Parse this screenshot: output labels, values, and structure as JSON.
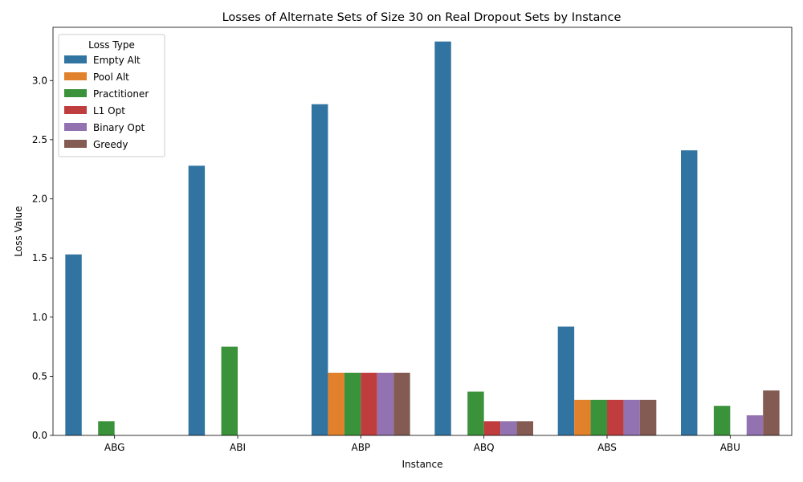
{
  "chart_data": {
    "type": "bar",
    "title": "Losses of Alternate Sets of Size 30 on Real Dropout Sets by Instance",
    "xlabel": "Instance",
    "ylabel": "Loss Value",
    "ylim": [
      0,
      3.45
    ],
    "yticks": [
      "0.0",
      "0.5",
      "1.0",
      "1.5",
      "2.0",
      "2.5",
      "3.0"
    ],
    "grid": false,
    "legend": {
      "title": "Loss Type",
      "placement": "top-left"
    },
    "categories": [
      "ABG",
      "ABI",
      "ABP",
      "ABQ",
      "ABS",
      "ABU"
    ],
    "series": [
      {
        "name": "Empty Alt",
        "color": "#3274a1",
        "values": [
          1.53,
          2.28,
          2.8,
          3.33,
          0.92,
          2.41
        ]
      },
      {
        "name": "Pool Alt",
        "color": "#e1812c",
        "values": [
          0,
          0,
          0.53,
          0,
          0.3,
          0
        ]
      },
      {
        "name": "Practitioner",
        "color": "#3a923a",
        "values": [
          0.12,
          0.75,
          0.53,
          0.37,
          0.3,
          0.25
        ]
      },
      {
        "name": "L1 Opt",
        "color": "#c03d3e",
        "values": [
          0,
          0,
          0.53,
          0.12,
          0.3,
          0
        ]
      },
      {
        "name": "Binary Opt",
        "color": "#9372b2",
        "values": [
          0,
          0,
          0.53,
          0.12,
          0.3,
          0.17
        ]
      },
      {
        "name": "Greedy",
        "color": "#845b53",
        "values": [
          0,
          0,
          0.53,
          0.12,
          0.3,
          0.38
        ]
      }
    ]
  }
}
